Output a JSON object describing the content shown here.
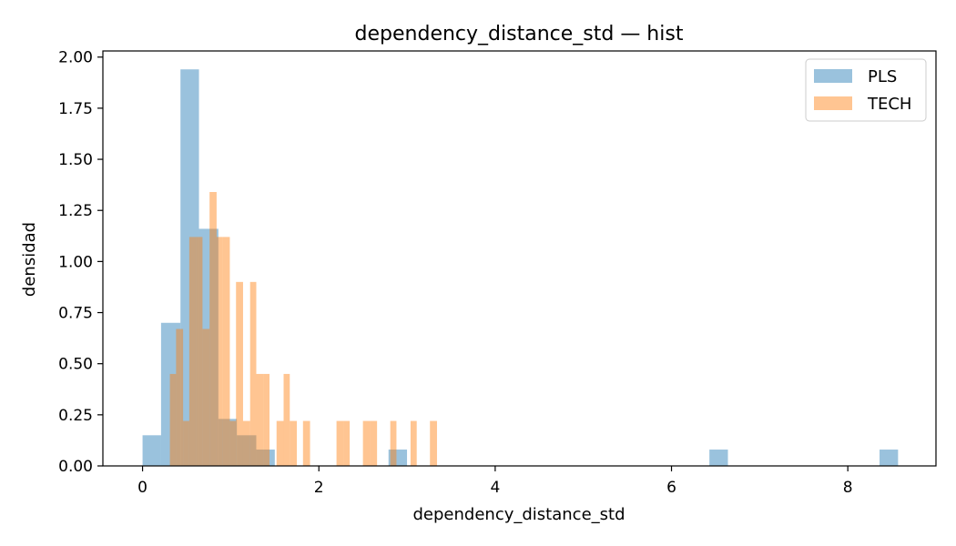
{
  "chart_data": {
    "type": "histogram",
    "title": "dependency_distance_std — hist",
    "xlabel": "dependency_distance_std",
    "ylabel": "densidad",
    "xlim": [
      -0.45,
      9.0
    ],
    "ylim": [
      0,
      2.03
    ],
    "xticks": [
      0,
      2,
      4,
      6,
      8
    ],
    "xtick_labels": [
      "0",
      "2",
      "4",
      "6",
      "8"
    ],
    "yticks": [
      0,
      0.25,
      0.5,
      0.75,
      1.0,
      1.25,
      1.5,
      1.75,
      2.0
    ],
    "ytick_labels": [
      "0.00",
      "0.25",
      "0.50",
      "0.75",
      "1.00",
      "1.25",
      "1.50",
      "1.75",
      "2.00"
    ],
    "legend_position": "top-right",
    "series": [
      {
        "name": "PLS",
        "color": "#1f77b4",
        "alpha": 0.45,
        "bins": [
          {
            "x0": 0.0,
            "x1": 0.21,
            "density": 0.15
          },
          {
            "x0": 0.21,
            "x1": 0.43,
            "density": 0.7
          },
          {
            "x0": 0.43,
            "x1": 0.64,
            "density": 1.94
          },
          {
            "x0": 0.64,
            "x1": 0.86,
            "density": 1.16
          },
          {
            "x0": 0.86,
            "x1": 1.07,
            "density": 0.23
          },
          {
            "x0": 1.07,
            "x1": 1.29,
            "density": 0.15
          },
          {
            "x0": 1.29,
            "x1": 1.5,
            "density": 0.08
          },
          {
            "x0": 2.79,
            "x1": 3.0,
            "density": 0.08
          },
          {
            "x0": 6.43,
            "x1": 6.64,
            "density": 0.08
          },
          {
            "x0": 8.36,
            "x1": 8.57,
            "density": 0.08
          }
        ]
      },
      {
        "name": "TECH",
        "color": "#ff7f0e",
        "alpha": 0.45,
        "bins": [
          {
            "x0": 0.31,
            "x1": 0.38,
            "density": 0.45
          },
          {
            "x0": 0.38,
            "x1": 0.46,
            "density": 0.67
          },
          {
            "x0": 0.46,
            "x1": 0.53,
            "density": 0.22
          },
          {
            "x0": 0.53,
            "x1": 0.61,
            "density": 1.12
          },
          {
            "x0": 0.61,
            "x1": 0.68,
            "density": 1.12
          },
          {
            "x0": 0.68,
            "x1": 0.76,
            "density": 0.67
          },
          {
            "x0": 0.76,
            "x1": 0.84,
            "density": 1.34
          },
          {
            "x0": 0.84,
            "x1": 0.91,
            "density": 1.12
          },
          {
            "x0": 0.91,
            "x1": 0.99,
            "density": 1.12
          },
          {
            "x0": 0.99,
            "x1": 1.06,
            "density": 0.22
          },
          {
            "x0": 1.06,
            "x1": 1.14,
            "density": 0.9
          },
          {
            "x0": 1.14,
            "x1": 1.22,
            "density": 0.22
          },
          {
            "x0": 1.22,
            "x1": 1.29,
            "density": 0.9
          },
          {
            "x0": 1.29,
            "x1": 1.37,
            "density": 0.45
          },
          {
            "x0": 1.37,
            "x1": 1.44,
            "density": 0.45
          },
          {
            "x0": 1.52,
            "x1": 1.6,
            "density": 0.22
          },
          {
            "x0": 1.6,
            "x1": 1.67,
            "density": 0.45
          },
          {
            "x0": 1.67,
            "x1": 1.75,
            "density": 0.22
          },
          {
            "x0": 1.82,
            "x1": 1.9,
            "density": 0.22
          },
          {
            "x0": 2.2,
            "x1": 2.28,
            "density": 0.22
          },
          {
            "x0": 2.28,
            "x1": 2.35,
            "density": 0.22
          },
          {
            "x0": 2.5,
            "x1": 2.58,
            "density": 0.22
          },
          {
            "x0": 2.58,
            "x1": 2.66,
            "density": 0.22
          },
          {
            "x0": 2.81,
            "x1": 2.88,
            "density": 0.22
          },
          {
            "x0": 3.04,
            "x1": 3.11,
            "density": 0.22
          },
          {
            "x0": 3.26,
            "x1": 3.34,
            "density": 0.22
          }
        ]
      }
    ]
  }
}
